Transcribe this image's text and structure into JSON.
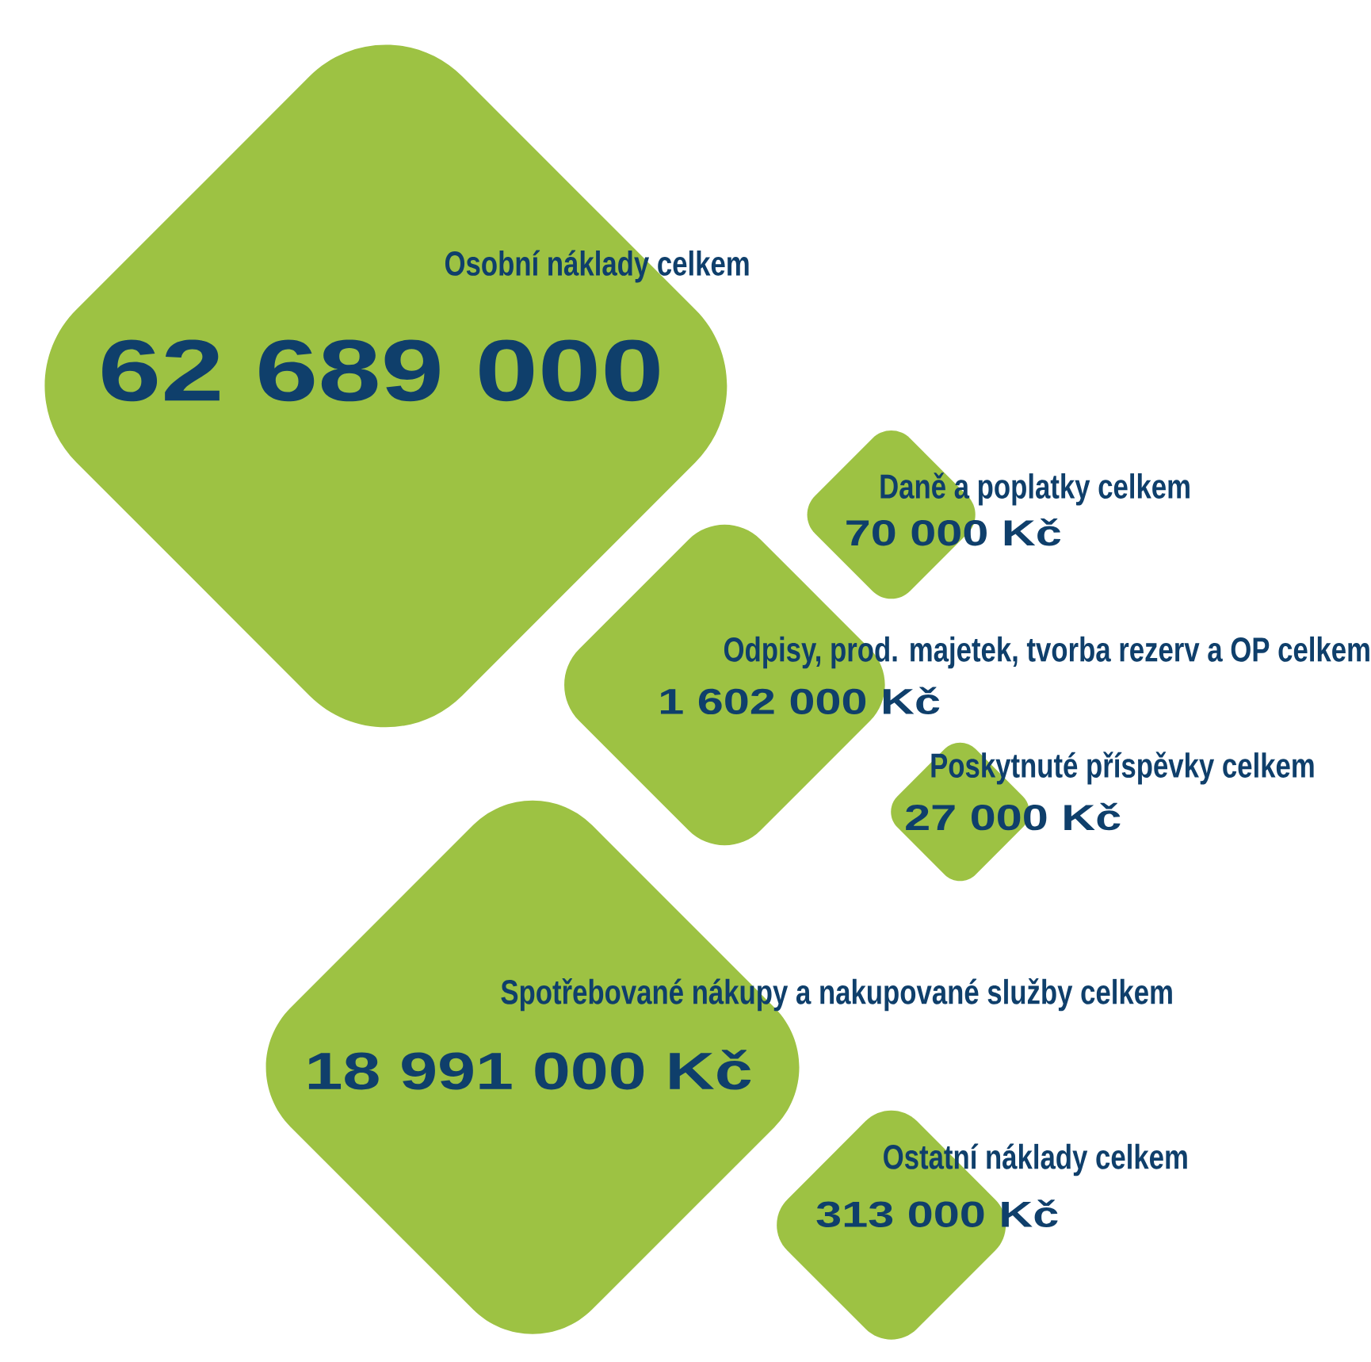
{
  "chart_data": {
    "type": "other",
    "categories": [
      "Osobní náklady celkem",
      "Daně a poplatky celkem",
      "Odpisy, prod. majetek, tvorba rezerv a OP celkem",
      "Poskytnuté příspěvky celkem",
      "Spotřebované nákupy a nakupované služby celkem",
      "Ostatní náklady celkem"
    ],
    "values": [
      62689000,
      70000,
      1602000,
      27000,
      18991000,
      313000
    ],
    "value_labels": [
      "62 689 000",
      "70 000 Kč",
      "1 602 000 Kč",
      "27 000 Kč",
      "18 991 000 Kč",
      "313 000 Kč"
    ],
    "colors": [
      "#9dc243",
      "#9dc243",
      "#9dc243",
      "#9dc243",
      "#9dc243",
      "#9dc243"
    ]
  }
}
